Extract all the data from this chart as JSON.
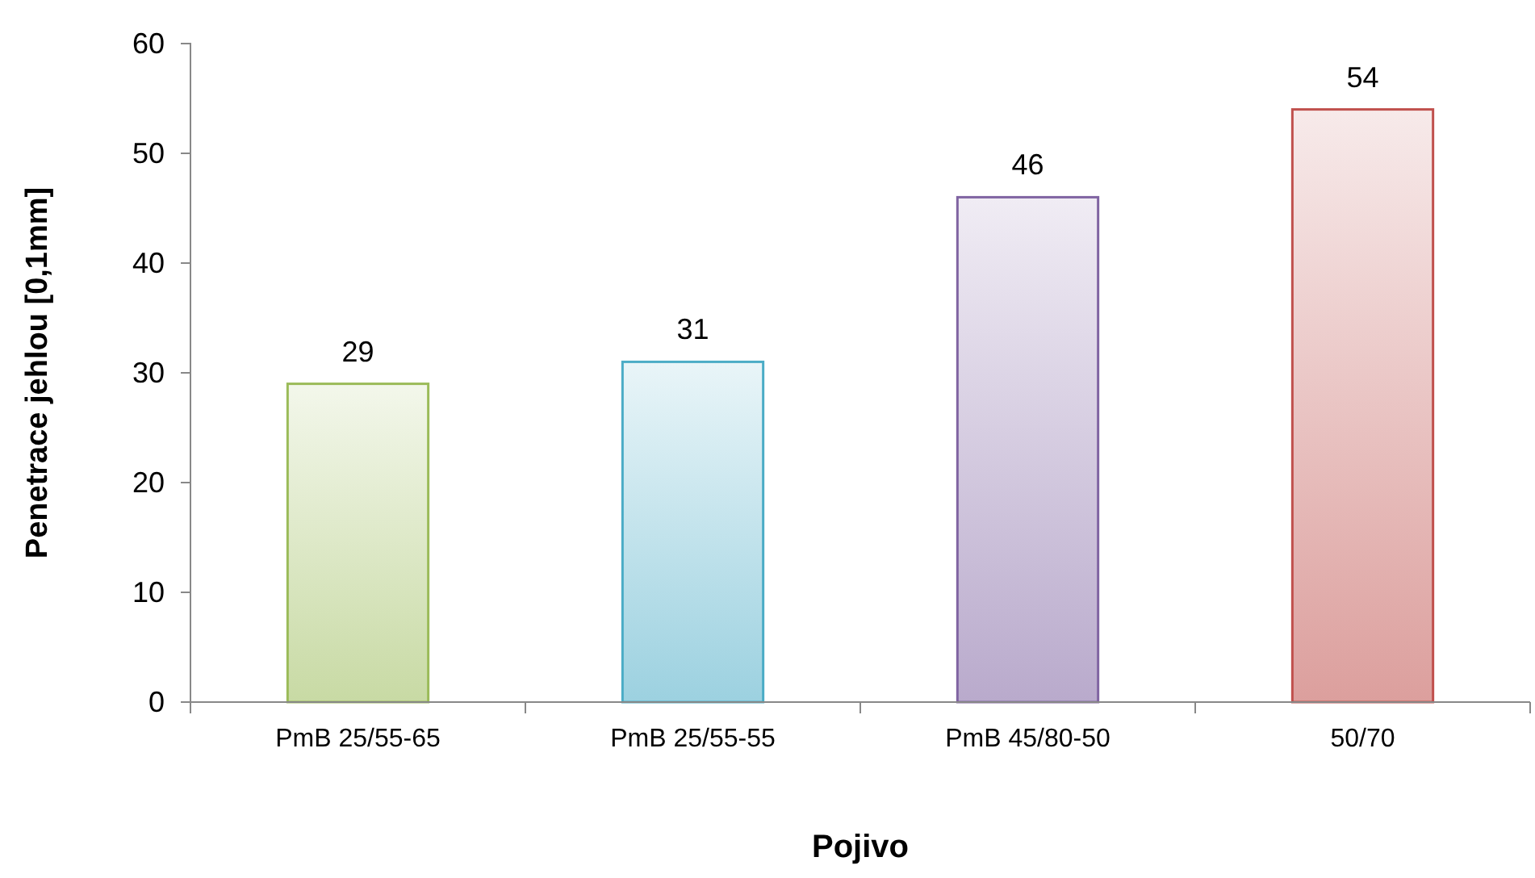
{
  "chart_data": {
    "type": "bar",
    "xlabel": "Pojivo",
    "ylabel": "Penetrace jehlou [0,1mm]",
    "categories": [
      "PmB 25/55-65",
      "PmB 25/55-55",
      "PmB 45/80-50",
      "50/70"
    ],
    "values": [
      29,
      31,
      46,
      54
    ],
    "colors": [
      "#9bbb59",
      "#4bacc6",
      "#8064a2",
      "#c0504d"
    ],
    "ylim": [
      0,
      60
    ],
    "yticks": [
      0,
      10,
      20,
      30,
      40,
      50,
      60
    ],
    "data_labels": true,
    "grid": false
  }
}
